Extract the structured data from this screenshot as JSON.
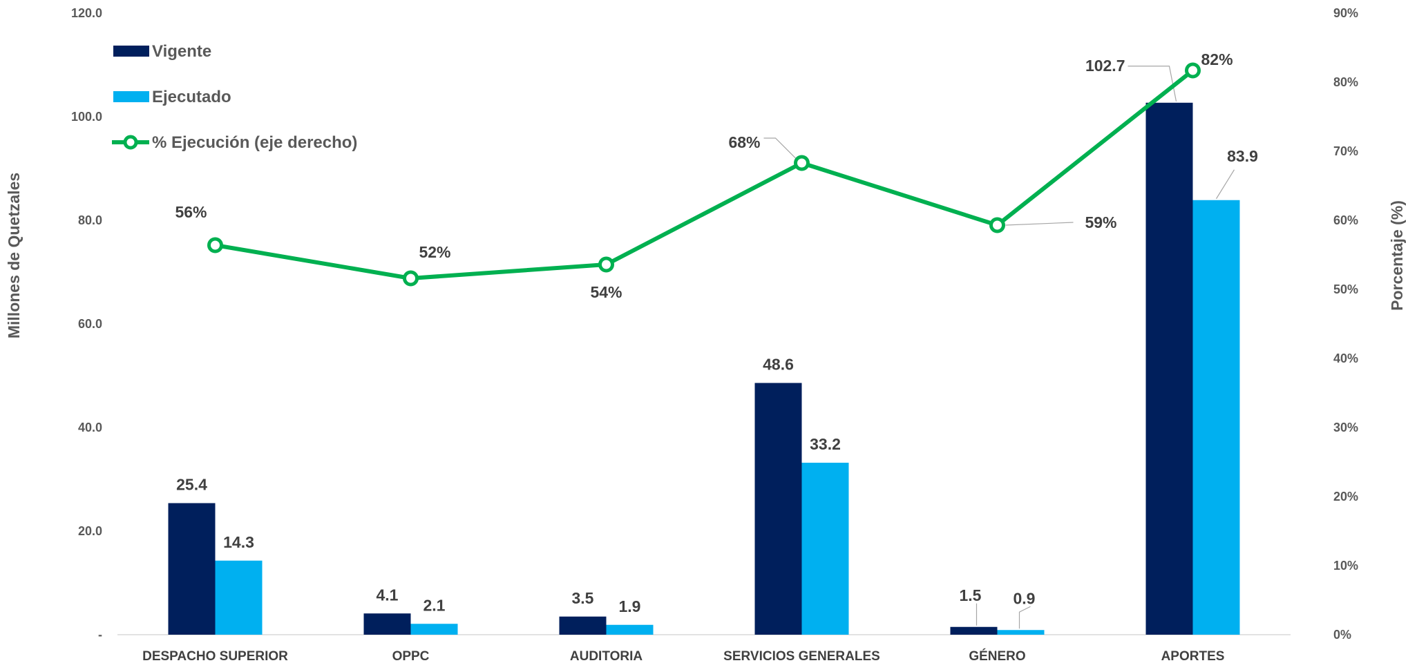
{
  "chart_data": {
    "type": "bar",
    "categories": [
      "DESPACHO SUPERIOR",
      "OPPC",
      "AUDITORIA",
      "SERVICIOS GENERALES",
      "GÉNERO",
      "APORTES"
    ],
    "series": [
      {
        "name": "Vigente",
        "kind": "bar",
        "axis": "left",
        "color": "#001f5c",
        "values": [
          25.4,
          4.1,
          3.5,
          48.6,
          1.5,
          102.7
        ],
        "labels": [
          "25.4",
          "4.1",
          "3.5",
          "48.6",
          "1.5",
          "102.7"
        ]
      },
      {
        "name": "Ejecutado",
        "kind": "bar",
        "axis": "left",
        "color": "#00b0f0",
        "values": [
          14.3,
          2.1,
          1.9,
          33.2,
          0.9,
          83.9
        ],
        "labels": [
          "14.3",
          "2.1",
          "1.9",
          "33.2",
          "0.9",
          "83.9"
        ]
      },
      {
        "name": "% Ejecución (eje derecho)",
        "kind": "line",
        "axis": "right",
        "color": "#00b050",
        "values": [
          56.4,
          51.6,
          53.6,
          68.3,
          59.3,
          81.7
        ],
        "labels": [
          "56%",
          "52%",
          "54%",
          "68%",
          "59%",
          "82%"
        ]
      }
    ],
    "ylabel": "Millones de Quetzales",
    "y2label": "Porcentaje (%)",
    "ylim": [
      0,
      120
    ],
    "y2lim": [
      0,
      90
    ],
    "yticks": [
      "-",
      "20.0",
      "40.0",
      "60.0",
      "80.0",
      "100.0",
      "120.0"
    ],
    "y2ticks": [
      "0%",
      "10%",
      "20%",
      "30%",
      "40%",
      "50%",
      "60%",
      "70%",
      "80%",
      "90%"
    ],
    "legend_position": "top-left",
    "grid": false
  }
}
